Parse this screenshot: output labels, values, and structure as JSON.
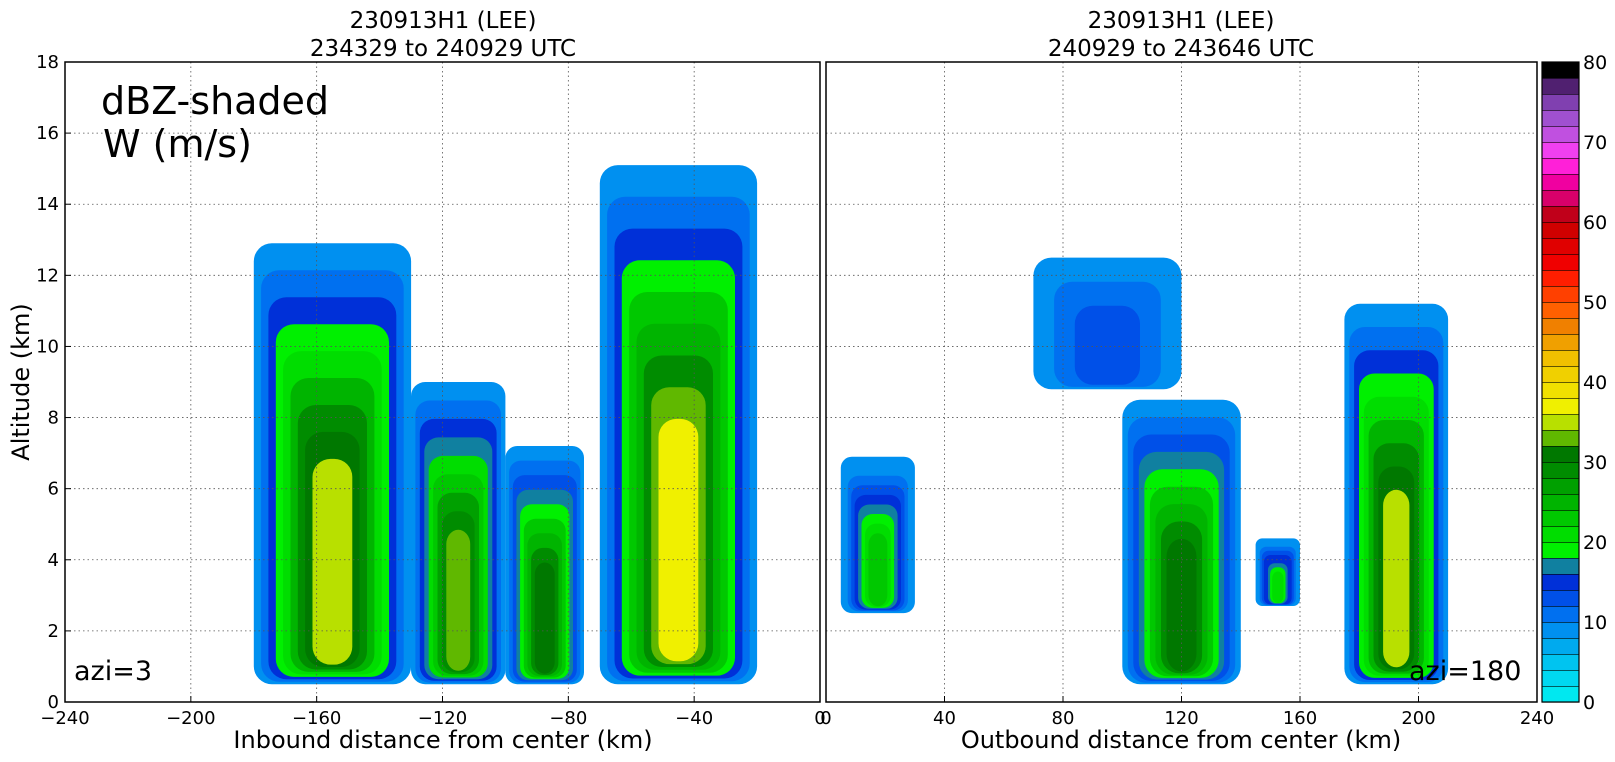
{
  "chart_data": [
    {
      "type": "heatmap",
      "title": "230913H1 (LEE)",
      "subtitle": "234329 to 240929 UTC",
      "xlabel": "Inbound distance from center (km)",
      "ylabel": "Altitude (km)",
      "xlim": [
        -240,
        0
      ],
      "ylim": [
        0,
        18
      ],
      "xticks": [
        "−240",
        "−200",
        "−160",
        "−120",
        "−80",
        "−40",
        "0"
      ],
      "xtick_values": [
        -240,
        -200,
        -160,
        -120,
        -80,
        -40,
        0
      ],
      "yticks": [
        "0",
        "2",
        "4",
        "6",
        "8",
        "10",
        "12",
        "14",
        "16",
        "18"
      ],
      "ytick_values": [
        0,
        2,
        4,
        6,
        8,
        10,
        12,
        14,
        16,
        18
      ],
      "grid": true,
      "annotation_main": [
        "dBZ-shaded",
        "W (m/s)"
      ],
      "annotation_corner": "azi=3",
      "echo_columns": [
        {
          "x": [
            -180,
            -130
          ],
          "top": 12.9,
          "bottom": 0.5,
          "core_dbz": 38
        },
        {
          "x": [
            -130,
            -100
          ],
          "top": 9.0,
          "bottom": 0.5,
          "core_dbz": 36
        },
        {
          "x": [
            -100,
            -75
          ],
          "top": 7.2,
          "bottom": 0.5,
          "core_dbz": 34
        },
        {
          "x": [
            -70,
            -20
          ],
          "top": 15.1,
          "bottom": 0.5,
          "core_dbz": 40
        }
      ]
    },
    {
      "type": "heatmap",
      "title": "230913H1 (LEE)",
      "subtitle": "240929 to 243646 UTC",
      "xlabel": "Outbound distance from center (km)",
      "ylabel": "",
      "xlim": [
        0,
        240
      ],
      "ylim": [
        0,
        18
      ],
      "xticks": [
        "0",
        "40",
        "80",
        "120",
        "160",
        "200",
        "240"
      ],
      "xtick_values": [
        0,
        40,
        80,
        120,
        160,
        200,
        240
      ],
      "grid": true,
      "annotation_corner": "azi=180",
      "echo_columns": [
        {
          "x": [
            5,
            30
          ],
          "top": 6.9,
          "bottom": 2.5,
          "core_dbz": 24
        },
        {
          "x": [
            100,
            140
          ],
          "top": 8.5,
          "bottom": 0.5,
          "core_dbz": 34
        },
        {
          "x": [
            145,
            160
          ],
          "top": 4.6,
          "bottom": 2.7,
          "core_dbz": 22
        },
        {
          "x": [
            175,
            210
          ],
          "top": 11.2,
          "bottom": 0.5,
          "core_dbz": 38
        },
        {
          "x": [
            70,
            120
          ],
          "top": 12.5,
          "bottom": 8.8,
          "core_dbz": 14
        }
      ]
    }
  ],
  "colorbar": {
    "min": 0,
    "max": 80,
    "ticks": [
      "0",
      "10",
      "20",
      "30",
      "40",
      "50",
      "60",
      "70",
      "80"
    ],
    "tick_values": [
      0,
      10,
      20,
      30,
      40,
      50,
      60,
      70,
      80
    ],
    "colors": [
      "#00e8f0",
      "#00d8f0",
      "#00c4f0",
      "#00aaee",
      "#0090f0",
      "#0070f0",
      "#0050e8",
      "#0030d8",
      "#1080a0",
      "#00f000",
      "#00dd00",
      "#00c800",
      "#00b400",
      "#00a000",
      "#008c00",
      "#007800",
      "#60b800",
      "#b8e000",
      "#f0f000",
      "#f0e000",
      "#f0d000",
      "#f0c000",
      "#f0a000",
      "#f08000",
      "#ff6000",
      "#ff4000",
      "#ff1e00",
      "#f00000",
      "#e00000",
      "#d00000",
      "#c0001a",
      "#d8006a",
      "#f000a0",
      "#ff20d8",
      "#f040f0",
      "#c050e0",
      "#a050d0",
      "#8040b0",
      "#502070",
      "#000000"
    ]
  }
}
